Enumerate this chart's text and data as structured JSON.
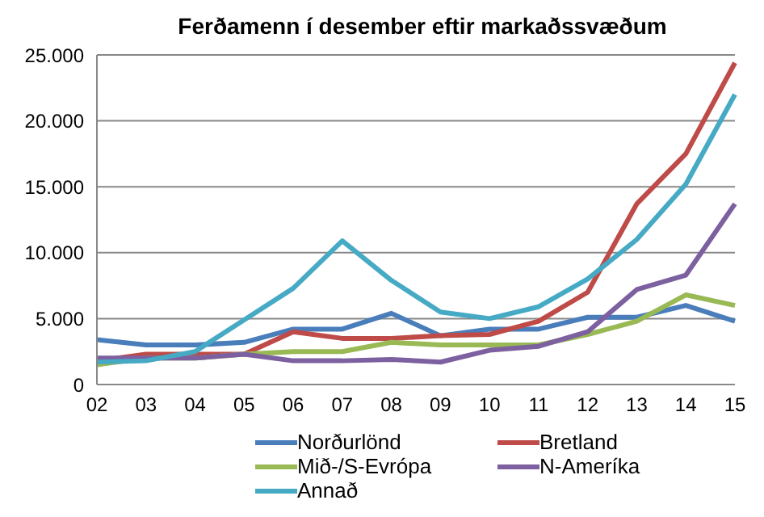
{
  "chart_data": {
    "type": "line",
    "title": "Ferðamenn í desember eftir markaðssvæðum",
    "categories": [
      "02",
      "03",
      "04",
      "05",
      "06",
      "07",
      "08",
      "09",
      "10",
      "11",
      "12",
      "13",
      "14",
      "15"
    ],
    "series": [
      {
        "name": "Norðurlönd",
        "color": "#4a7ebb",
        "values": [
          3400,
          3000,
          3000,
          3200,
          4200,
          4200,
          5400,
          3700,
          4200,
          4200,
          5100,
          5100,
          6000,
          4800
        ]
      },
      {
        "name": "Bretland",
        "color": "#be4b48",
        "values": [
          1800,
          2300,
          2300,
          2300,
          4000,
          3500,
          3500,
          3700,
          3800,
          4800,
          7000,
          13700,
          17500,
          24400
        ]
      },
      {
        "name": "Mið-/S-Evrópa",
        "color": "#98b954",
        "values": [
          1500,
          2000,
          2000,
          2300,
          2500,
          2500,
          3200,
          3000,
          3000,
          3000,
          3800,
          4800,
          6800,
          6000
        ]
      },
      {
        "name": "N-Ameríka",
        "color": "#7d60a0",
        "values": [
          2000,
          2000,
          2000,
          2300,
          1800,
          1800,
          1900,
          1700,
          2600,
          2900,
          4000,
          7200,
          8300,
          13700
        ]
      },
      {
        "name": "Annað",
        "color": "#46aac5",
        "values": [
          1700,
          1800,
          2500,
          4900,
          7300,
          10900,
          7900,
          5500,
          5000,
          5900,
          8000,
          11000,
          15200,
          22000
        ]
      }
    ],
    "ylim": [
      0,
      25000
    ],
    "yticks": [
      0,
      {
        "value": 5000,
        "label": "5.000"
      },
      {
        "value": 10000,
        "label": "10.000"
      },
      {
        "value": 15000,
        "label": "15.000"
      },
      {
        "value": 20000,
        "label": "20.000"
      },
      {
        "value": 25000,
        "label": "25.000"
      }
    ],
    "grid": "y",
    "legend": "bottom",
    "marker": "none",
    "line_style": "solid"
  }
}
